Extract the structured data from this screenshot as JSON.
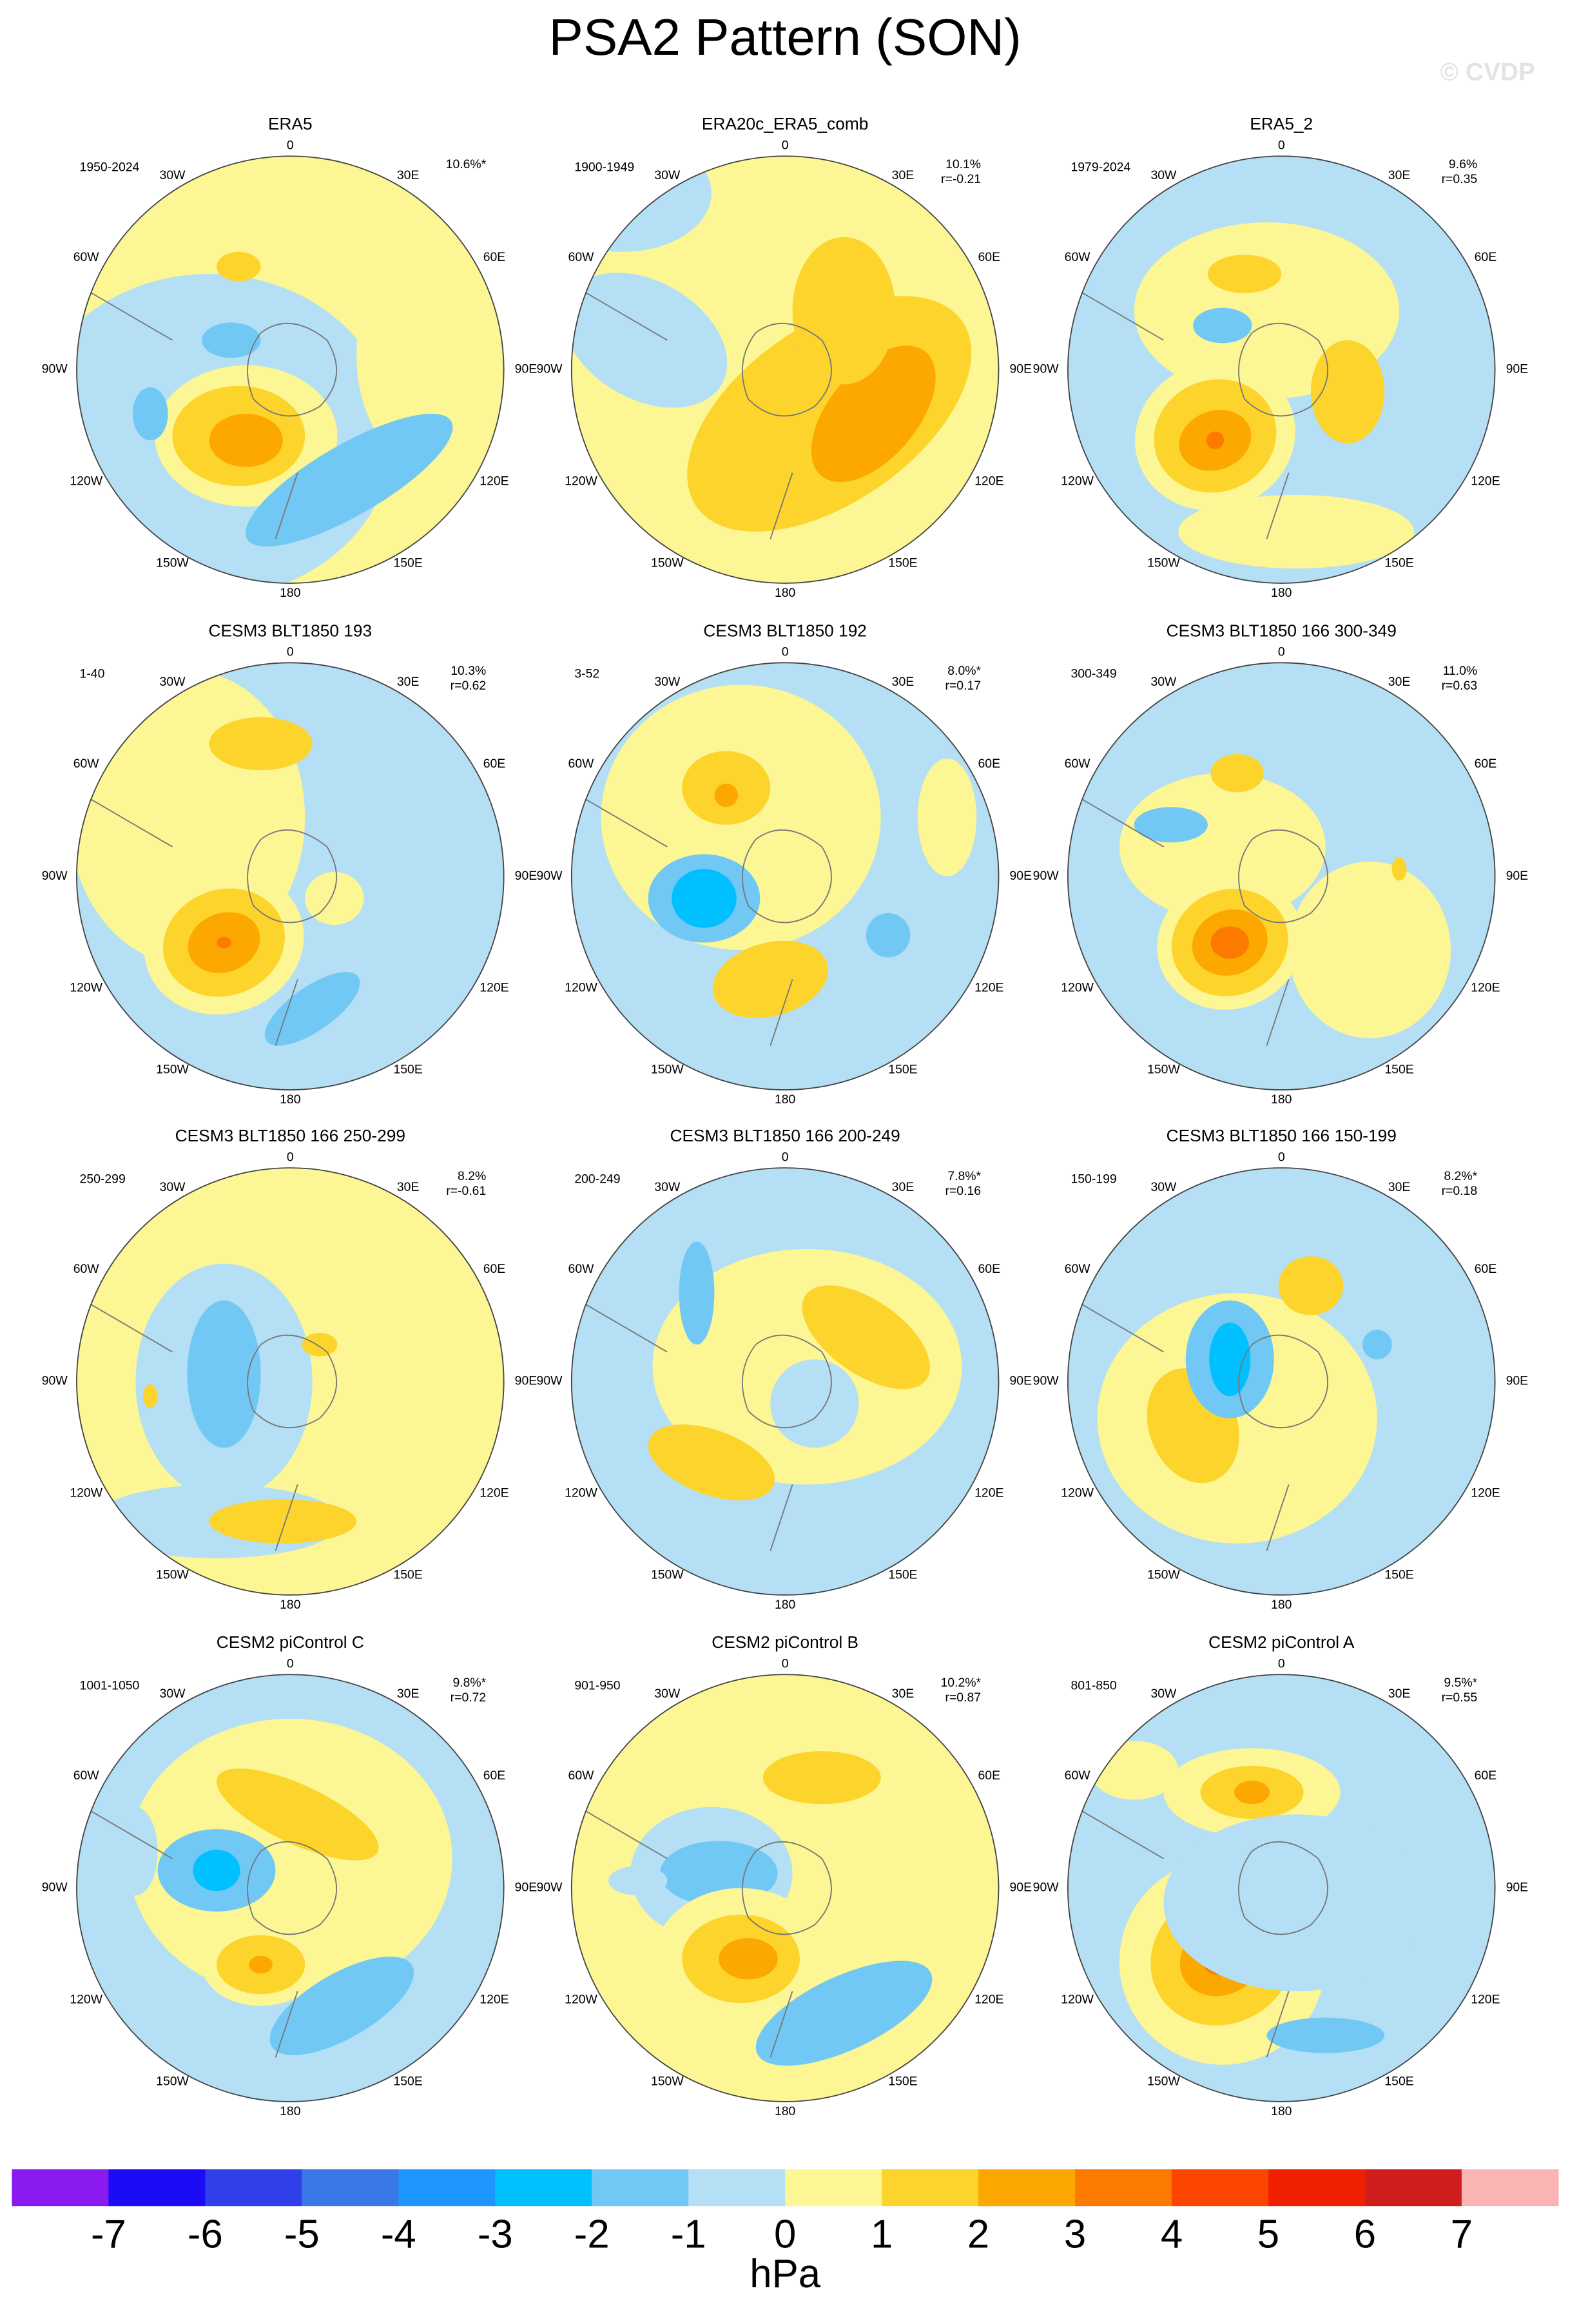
{
  "header": {
    "title": "PSA2 Pattern (SON)",
    "credit": "© CVDP"
  },
  "lon_labels": [
    "0",
    "30E",
    "60E",
    "90E",
    "120E",
    "150E",
    "180",
    "150W",
    "120W",
    "90W",
    "60W",
    "30W"
  ],
  "panels": [
    {
      "title": "ERA5",
      "period": "1950-2024",
      "explained": "10.6%*"
    },
    {
      "title": "ERA20c_ERA5_comb",
      "period": "1900-1949",
      "explained": "10.1%",
      "r": "r=-0.21"
    },
    {
      "title": "ERA5_2",
      "period": "1979-2024",
      "explained": "9.6%",
      "r": "r=0.35"
    },
    {
      "title": "CESM3 BLT1850 193",
      "period": "1-40",
      "explained": "10.3%",
      "r": "r=0.62"
    },
    {
      "title": "CESM3 BLT1850 192",
      "period": "3-52",
      "explained": "8.0%*",
      "r": "r=0.17"
    },
    {
      "title": "CESM3 BLT1850 166 300-349",
      "period": "300-349",
      "explained": "11.0%",
      "r": "r=0.63"
    },
    {
      "title": "CESM3 BLT1850 166 250-299",
      "period": "250-299",
      "explained": "8.2%",
      "r": "r=-0.61"
    },
    {
      "title": "CESM3 BLT1850 166 200-249",
      "period": "200-249",
      "explained": "7.8%*",
      "r": "r=0.16"
    },
    {
      "title": "CESM3 BLT1850 166 150-199",
      "period": "150-199",
      "explained": "8.2%*",
      "r": "r=0.18"
    },
    {
      "title": "CESM2 piControl C",
      "period": "1001-1050",
      "explained": "9.8%*",
      "r": "r=0.72"
    },
    {
      "title": "CESM2 piControl B",
      "period": "901-950",
      "explained": "10.2%*",
      "r": "r=0.87"
    },
    {
      "title": "CESM2 piControl A",
      "period": "801-850",
      "explained": "9.5%*",
      "r": "r=0.55"
    }
  ],
  "colorbar": {
    "levels": [
      -7,
      -6,
      -5,
      -4,
      -3,
      -2,
      -1,
      0,
      1,
      2,
      3,
      4,
      5,
      6,
      7
    ],
    "colors": [
      "#8a1aef",
      "#1c0cf5",
      "#3040e8",
      "#3a78e8",
      "#1e96ff",
      "#00c0ff",
      "#72c8f4",
      "#b4dff4",
      "#fcf794",
      "#fcd42c",
      "#fca800",
      "#fc7a00",
      "#fc4600",
      "#f02000",
      "#d01e1e",
      "#fbb4b4"
    ],
    "unit": "hPa"
  }
}
